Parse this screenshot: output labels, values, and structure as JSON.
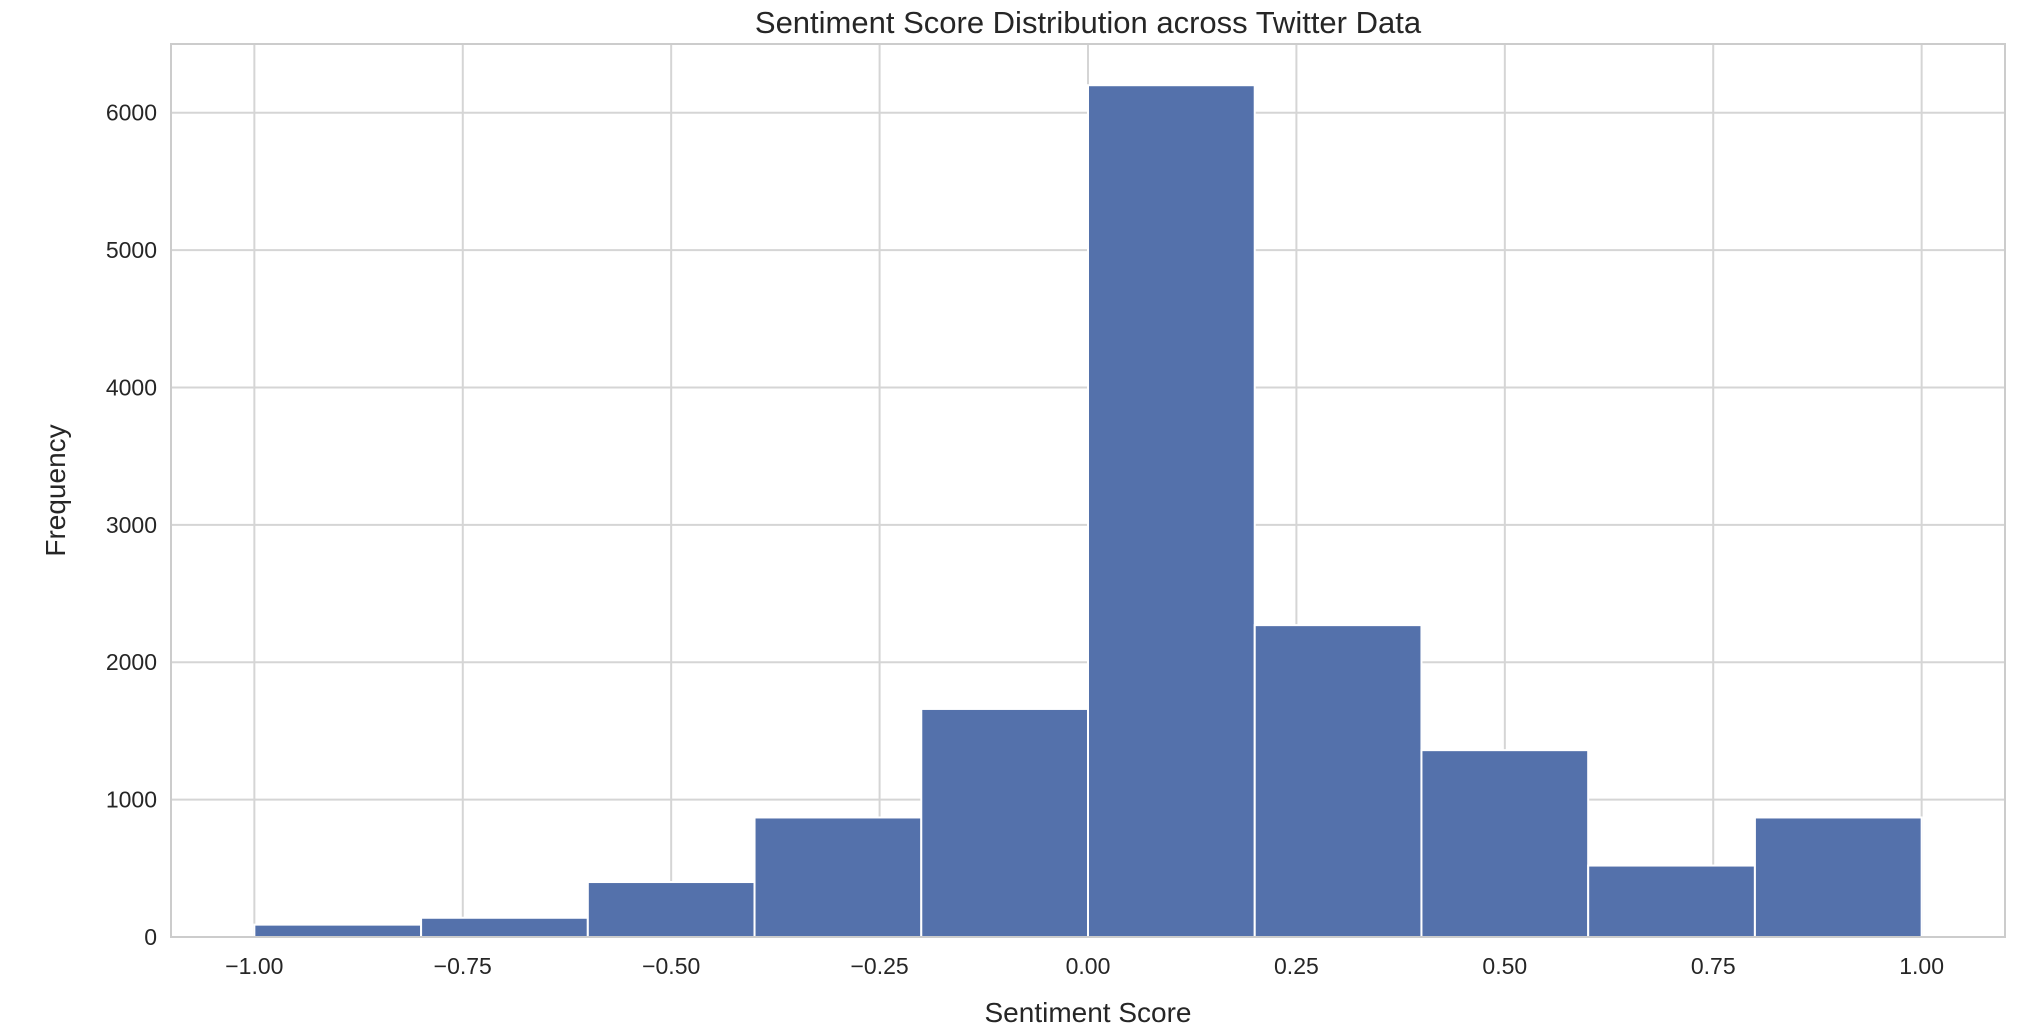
{
  "chart_data": {
    "type": "bar",
    "title": "Sentiment Score Distribution across Twitter Data",
    "xlabel": "Sentiment Score",
    "ylabel": "Frequency",
    "xlim": [
      -1.1,
      1.1
    ],
    "ylim": [
      0,
      6500
    ],
    "grid": true,
    "bar_color": "#5471ab",
    "grid_color": "#d5d5d5",
    "bins": [
      {
        "x0": -1.0,
        "x1": -0.8,
        "value": 90
      },
      {
        "x0": -0.8,
        "x1": -0.6,
        "value": 140
      },
      {
        "x0": -0.6,
        "x1": -0.4,
        "value": 400
      },
      {
        "x0": -0.4,
        "x1": -0.2,
        "value": 870
      },
      {
        "x0": -0.2,
        "x1": 0.0,
        "value": 1660
      },
      {
        "x0": 0.0,
        "x1": 0.2,
        "value": 6200
      },
      {
        "x0": 0.2,
        "x1": 0.4,
        "value": 2270
      },
      {
        "x0": 0.4,
        "x1": 0.6,
        "value": 1360
      },
      {
        "x0": 0.6,
        "x1": 0.8,
        "value": 520
      },
      {
        "x0": 0.8,
        "x1": 1.0,
        "value": 870
      }
    ],
    "x_ticks": [
      {
        "value": -1.0,
        "label": "−1.00"
      },
      {
        "value": -0.75,
        "label": "−0.75"
      },
      {
        "value": -0.5,
        "label": "−0.50"
      },
      {
        "value": -0.25,
        "label": "−0.25"
      },
      {
        "value": 0.0,
        "label": "0.00"
      },
      {
        "value": 0.25,
        "label": "0.25"
      },
      {
        "value": 0.5,
        "label": "0.50"
      },
      {
        "value": 0.75,
        "label": "0.75"
      },
      {
        "value": 1.0,
        "label": "1.00"
      }
    ],
    "y_ticks": [
      {
        "value": 0,
        "label": "0"
      },
      {
        "value": 1000,
        "label": "1000"
      },
      {
        "value": 2000,
        "label": "2000"
      },
      {
        "value": 3000,
        "label": "3000"
      },
      {
        "value": 4000,
        "label": "4000"
      },
      {
        "value": 5000,
        "label": "5000"
      },
      {
        "value": 6000,
        "label": "6000"
      }
    ]
  }
}
